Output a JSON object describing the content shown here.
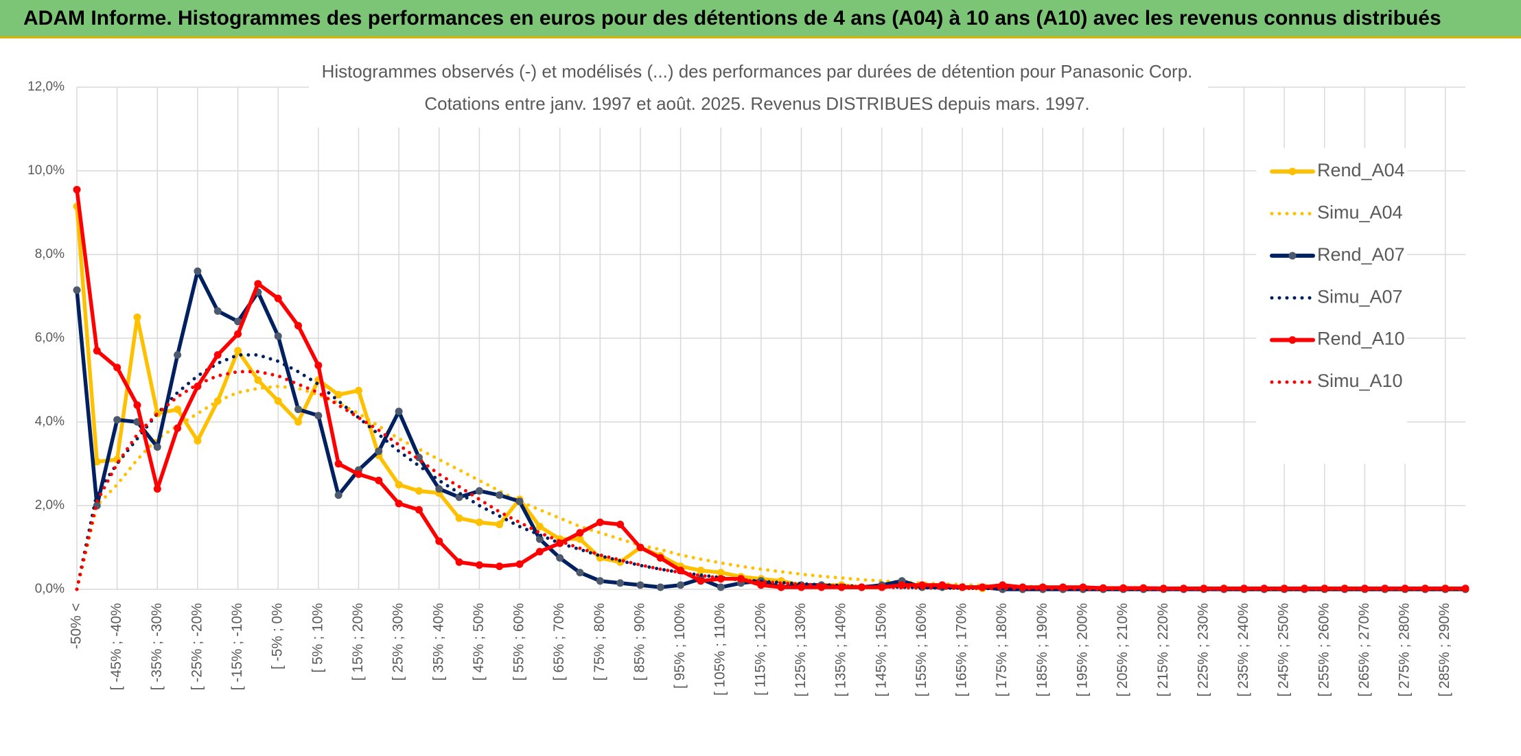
{
  "header": {
    "title": "ADAM Informe. Histogrammes des performances en euros pour des détentions de 4 ans (A04) à 10 ans (A10) avec les revenus connus distribués"
  },
  "chart_data": {
    "type": "line",
    "title": "Histogrammes observés (-) et modélisés (...) des performances par durées de détention pour Panasonic Corp.",
    "subtitle": "Cotations entre janv. 1997 et août. 2025. Revenus DISTRIBUES depuis mars. 1997.",
    "categories": [
      "-50% <",
      null,
      "[ -45% ; -40%",
      null,
      "[ -35% ; -30%",
      null,
      "[ -25% ; -20%",
      null,
      "[ -15% ; -10%",
      null,
      "[ -5% ; 0%",
      null,
      "[ 5% ; 10%",
      null,
      "[ 15% ; 20%",
      null,
      "[ 25% ; 30%",
      null,
      "[ 35% ; 40%",
      null,
      "[ 45% ; 50%",
      null,
      "[ 55% ; 60%",
      null,
      "[ 65% ; 70%",
      null,
      "[ 75% ; 80%",
      null,
      "[ 85% ; 90%",
      null,
      "[ 95% ; 100%",
      null,
      "[ 105% ; 110%",
      null,
      "[ 115% ; 120%",
      null,
      "[ 125% ; 130%",
      null,
      "[ 135% ; 140%",
      null,
      "[ 145% ; 150%",
      null,
      "[ 155% ; 160%",
      null,
      "[ 165% ; 170%",
      null,
      "[ 175% ; 180%",
      null,
      "[ 185% ; 190%",
      null,
      "[ 195% ; 200%",
      null,
      "[ 205% ; 210%",
      null,
      "[ 215% ; 220%",
      null,
      "[ 225% ; 230%",
      null,
      "[ 235% ; 240%",
      null,
      "[ 245% ; 250%",
      null,
      "[ 255% ; 260%",
      null,
      "[ 265% ; 270%",
      null,
      "[ 275% ; 280%",
      null,
      "[ 285% ; 290%",
      null
    ],
    "series": [
      {
        "name": "Rend_A04",
        "color": "#ffc000",
        "dotted": false,
        "values": [
          9.15,
          3.05,
          3.1,
          6.5,
          4.2,
          4.3,
          3.55,
          4.5,
          5.7,
          5.0,
          4.5,
          4.0,
          5.0,
          4.65,
          4.75,
          3.2,
          2.5,
          2.35,
          2.3,
          1.7,
          1.6,
          1.55,
          2.15,
          1.5,
          1.2,
          1.2,
          0.75,
          0.65,
          1.0,
          0.8,
          0.55,
          0.45,
          0.4,
          0.3,
          0.25,
          0.2,
          0.1,
          0.1,
          0.1,
          0.05,
          0.05,
          0.1,
          0.05,
          0.1,
          0.05,
          0.02,
          0.05,
          0.03,
          0.03,
          0.02,
          0.02,
          0.02,
          0.01,
          0.01,
          0.01,
          0.01,
          0.01,
          0,
          0,
          0,
          0,
          0,
          0,
          0,
          0,
          0,
          0,
          0,
          0,
          0
        ]
      },
      {
        "name": "Simu_A04",
        "color": "#ffc000",
        "dotted": true,
        "values": [
          0,
          2.0,
          2.5,
          3.1,
          3.6,
          3.9,
          4.2,
          4.5,
          4.7,
          4.8,
          4.85,
          4.8,
          4.65,
          4.45,
          4.2,
          3.9,
          3.6,
          3.35,
          3.1,
          2.85,
          2.6,
          2.35,
          2.1,
          1.9,
          1.7,
          1.5,
          1.35,
          1.2,
          1.05,
          0.95,
          0.82,
          0.72,
          0.63,
          0.55,
          0.48,
          0.42,
          0.36,
          0.31,
          0.27,
          0.23,
          0.2,
          0.17,
          0.15,
          0.13,
          0.11,
          0.09,
          0.08,
          0.07,
          0.06,
          0.05,
          0.04,
          0.03,
          0.03,
          0.02,
          0.02,
          0.02,
          0.01,
          0.01,
          0.01,
          0.01,
          0,
          0,
          0,
          0,
          0,
          0,
          0,
          0,
          0,
          0
        ]
      },
      {
        "name": "Rend_A07",
        "color": "#002060",
        "dotted": false,
        "values": [
          7.15,
          2.0,
          4.05,
          4.0,
          3.4,
          5.6,
          7.6,
          6.65,
          6.4,
          7.1,
          6.05,
          4.3,
          4.15,
          2.25,
          2.85,
          3.3,
          4.25,
          3.15,
          2.4,
          2.2,
          2.35,
          2.25,
          2.1,
          1.2,
          0.75,
          0.4,
          0.2,
          0.15,
          0.1,
          0.05,
          0.1,
          0.25,
          0.05,
          0.15,
          0.2,
          0.05,
          0.1,
          0.1,
          0.05,
          0.05,
          0.1,
          0.2,
          0.05,
          0.05,
          0.05,
          0.05,
          0,
          0,
          0,
          0,
          0,
          0,
          0,
          0,
          0,
          0,
          0,
          0,
          0,
          0,
          0,
          0,
          0,
          0,
          0,
          0,
          0,
          0,
          0,
          0
        ]
      },
      {
        "name": "Simu_A07",
        "color": "#002060",
        "dotted": true,
        "values": [
          0,
          2.3,
          3.0,
          3.6,
          4.2,
          4.7,
          5.1,
          5.4,
          5.6,
          5.6,
          5.45,
          5.2,
          4.9,
          4.5,
          4.1,
          3.7,
          3.3,
          2.95,
          2.6,
          2.3,
          2.0,
          1.75,
          1.5,
          1.3,
          1.1,
          0.95,
          0.8,
          0.68,
          0.57,
          0.48,
          0.4,
          0.34,
          0.28,
          0.23,
          0.19,
          0.16,
          0.13,
          0.11,
          0.09,
          0.07,
          0.06,
          0.05,
          0.04,
          0.03,
          0.03,
          0.02,
          0.02,
          0.01,
          0.01,
          0.01,
          0,
          0,
          0,
          0,
          0,
          0,
          0,
          0,
          0,
          0,
          0,
          0,
          0,
          0,
          0,
          0,
          0,
          0,
          0,
          0
        ]
      },
      {
        "name": "Rend_A10",
        "color": "#ff0000",
        "dotted": false,
        "values": [
          9.55,
          5.7,
          5.3,
          4.4,
          2.4,
          3.85,
          4.85,
          5.6,
          6.1,
          7.3,
          6.95,
          6.3,
          5.35,
          3.0,
          2.75,
          2.6,
          2.05,
          1.9,
          1.15,
          0.65,
          0.58,
          0.55,
          0.6,
          0.9,
          1.1,
          1.35,
          1.6,
          1.55,
          1.0,
          0.75,
          0.45,
          0.2,
          0.25,
          0.25,
          0.1,
          0.05,
          0.05,
          0.05,
          0.05,
          0.05,
          0.05,
          0.1,
          0.1,
          0.1,
          0.05,
          0.05,
          0.1,
          0.05,
          0.05,
          0.05,
          0.05,
          0.03,
          0.03,
          0.03,
          0.02,
          0.02,
          0.02,
          0.02,
          0.02,
          0.02,
          0.02,
          0.02,
          0.02,
          0.02,
          0.02,
          0.02,
          0.02,
          0.02,
          0.02,
          0.02
        ]
      },
      {
        "name": "Simu_A10",
        "color": "#ff0000",
        "dotted": true,
        "values": [
          0,
          2.1,
          3.0,
          3.7,
          4.2,
          4.6,
          4.9,
          5.1,
          5.2,
          5.2,
          5.1,
          4.9,
          4.7,
          4.4,
          4.1,
          3.8,
          3.45,
          3.1,
          2.75,
          2.45,
          2.15,
          1.85,
          1.6,
          1.35,
          1.15,
          0.98,
          0.82,
          0.7,
          0.58,
          0.48,
          0.4,
          0.33,
          0.27,
          0.22,
          0.18,
          0.15,
          0.12,
          0.1,
          0.08,
          0.06,
          0.05,
          0.04,
          0.03,
          0.03,
          0.02,
          0.02,
          0.02,
          0.01,
          0.01,
          0.01,
          0,
          0,
          0,
          0,
          0,
          0,
          0,
          0,
          0,
          0,
          0,
          0,
          0,
          0,
          0,
          0,
          0,
          0,
          0,
          0
        ]
      }
    ],
    "ylim": [
      0,
      12
    ],
    "yticks": [
      {
        "value": 0,
        "label": "0,0%"
      },
      {
        "value": 2,
        "label": "2,0%"
      },
      {
        "value": 4,
        "label": "4,0%"
      },
      {
        "value": 6,
        "label": "6,0%"
      },
      {
        "value": 8,
        "label": "8,0%"
      },
      {
        "value": 10,
        "label": "10,0%"
      },
      {
        "value": 12,
        "label": "12,0%"
      }
    ],
    "grid": true,
    "legend": "right"
  }
}
